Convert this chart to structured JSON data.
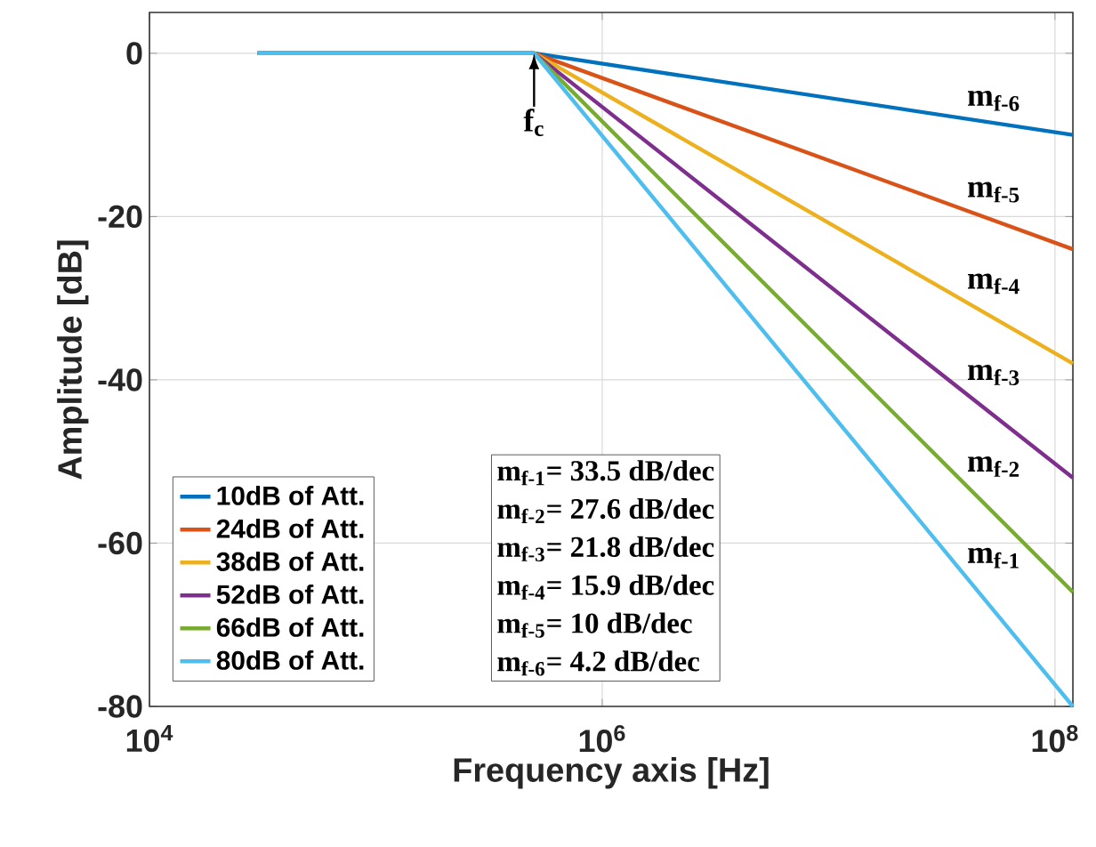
{
  "chart_data": {
    "type": "line",
    "xlabel": "Frequency axis [Hz]",
    "ylabel": "Amplitude [dB]",
    "log": "x",
    "grid": true,
    "legend": "bottom left",
    "line_style": "solid",
    "xlim": [
      10000,
      120000000
    ],
    "ylim": [
      -80,
      5
    ],
    "xticks": [
      {
        "value": 10000,
        "label": "10$^{4}$"
      },
      {
        "value": 1000000,
        "label": "10$^{6}$"
      },
      {
        "value": 100000000,
        "label": "10$^{8}$"
      }
    ],
    "yticks": [
      -80,
      -60,
      -40,
      -20,
      0
    ],
    "x": [
      30000,
      500000,
      120000000
    ],
    "series": [
      {
        "name": "10dB of Att.",
        "color": "#0072bd",
        "values": [
          0,
          0,
          -10
        ]
      },
      {
        "name": "24dB of Att.",
        "color": "#d95319",
        "values": [
          0,
          0,
          -24
        ]
      },
      {
        "name": "38dB of Att.",
        "color": "#edb120",
        "values": [
          0,
          0,
          -38
        ]
      },
      {
        "name": "52dB of Att.",
        "color": "#7e2f8e",
        "values": [
          0,
          0,
          -52
        ]
      },
      {
        "name": "66dB of Att.",
        "color": "#77ac30",
        "values": [
          0,
          0,
          -66
        ]
      },
      {
        "name": "80dB of Att.",
        "color": "#4dbeee",
        "values": [
          0,
          0,
          -80
        ]
      }
    ],
    "annotations": [
      "m$_{f-1}$= 33.5 dB/dec",
      "m$_{f-2}$= 27.6 dB/dec",
      "m$_{f-3}$= 21.8 dB/dec",
      "m$_{f-4}$= 15.9 dB/dec",
      "m$_{f-5}$= 10 dB/dec",
      "m$_{f-6}$= 4.2 dB/dec",
      {
        "text": "f$_{c}$",
        "x": 500000,
        "y": 0
      },
      "m$_{f-6}$",
      "m$_{f-5}$",
      "m$_{f-4}$",
      "m$_{f-3}$",
      "m$_{f-2}$",
      "m$_{f-1}$"
    ]
  }
}
